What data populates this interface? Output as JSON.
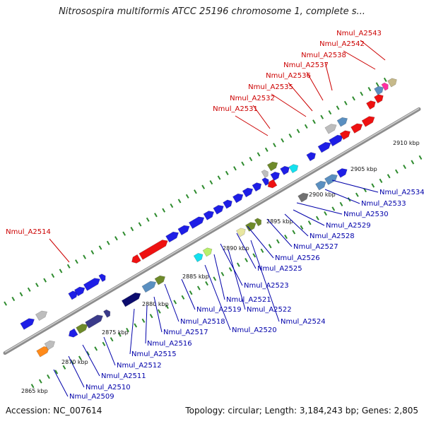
{
  "title": "Nitrosospira multiformis ATCC 25196 chromosome 1, complete s...",
  "footer": {
    "accession": "Accession: NC_007614",
    "summary": "Topology: circular; Length: 3,184,243 bp; Genes: 2,805"
  },
  "colors": {
    "upper_label": "#cc0000",
    "lower_label": "#0000aa",
    "backbone": "#9a9a9a",
    "tick": "#2e8b2e"
  },
  "kbp_labels": [
    "2865 kbp",
    "2870 kbp",
    "2875 kbp",
    "2880 kbp",
    "2885 kbp",
    "2890 kbp",
    "2895 kbp",
    "2900 kbp",
    "2905 kbp",
    "2910 kbp"
  ],
  "upper_labels": [
    "Nmul_A2543",
    "Nmul_A2542",
    "Nmul_A2538",
    "Nmul_A2537",
    "Nmul_A2536",
    "Nmul_A2535",
    "Nmul_A2532",
    "Nmul_A2531",
    "Nmul_A2514"
  ],
  "lower_labels": [
    "Nmul_A2534",
    "Nmul_A2533",
    "Nmul_A2530",
    "Nmul_A2529",
    "Nmul_A2528",
    "Nmul_A2527",
    "Nmul_A2526",
    "Nmul_A2525",
    "Nmul_A2523",
    "Nmul_A2521",
    "Nmul_A2522",
    "Nmul_A2524",
    "Nmul_A2519",
    "Nmul_A2518",
    "Nmul_A2520",
    "Nmul_A2517",
    "Nmul_A2516",
    "Nmul_A2515",
    "Nmul_A2512",
    "Nmul_A2511",
    "Nmul_A2510",
    "Nmul_A2509"
  ]
}
